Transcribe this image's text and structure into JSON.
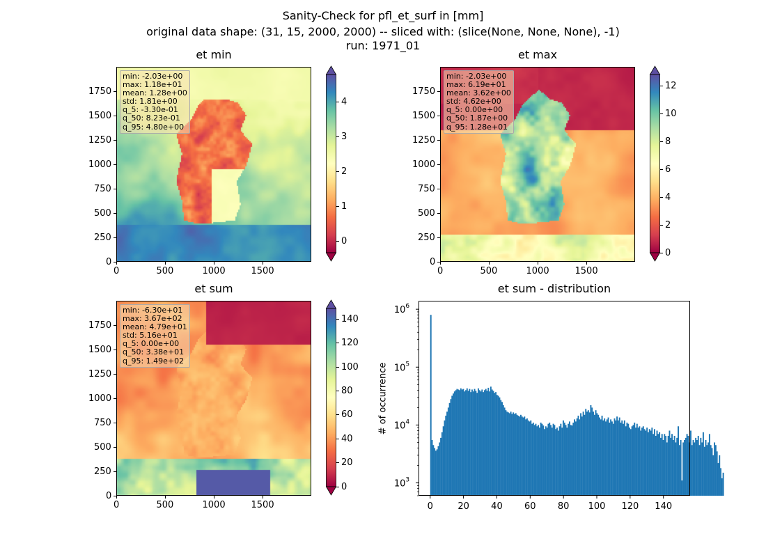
{
  "title": {
    "line1": "Sanity-Check for pfl_et_surf in [mm]",
    "line2": "original data shape: (31, 15, 2000, 2000) -- sliced with: (slice(None, None, None), -1)",
    "line3": "run: 1971_01"
  },
  "colors": {
    "cmap": [
      "#9e0142",
      "#d53e4f",
      "#f46d43",
      "#fdae61",
      "#fee08b",
      "#ffffbf",
      "#e6f598",
      "#abdda4",
      "#66c2a5",
      "#3288bd",
      "#5e4fa2"
    ],
    "hist_bar": "#1f77b4",
    "stat_box_bg": "#f5deb3"
  },
  "maps": [
    {
      "title": "et min",
      "x_ticks": [
        "0",
        "500",
        "1000",
        "1500"
      ],
      "y_ticks": [
        "0",
        "250",
        "500",
        "750",
        "1000",
        "1250",
        "1500",
        "1750"
      ],
      "colorbar_ticks": [
        "0",
        "1",
        "2",
        "3",
        "4"
      ],
      "colorbar_range": [
        -0.33,
        4.8
      ],
      "stats": [
        "min: -2.03e+00",
        "max: 1.18e+01",
        "mean: 1.28e+00",
        "std: 1.81e+00",
        "q_5: -3.30e-01",
        "q_50: 8.23e-01",
        "q_95: 4.80e+00"
      ]
    },
    {
      "title": "et max",
      "x_ticks": [
        "0",
        "500",
        "1000",
        "1500"
      ],
      "y_ticks": [
        "0",
        "250",
        "500",
        "750",
        "1000",
        "1250",
        "1500",
        "1750"
      ],
      "colorbar_ticks": [
        "0",
        "2",
        "4",
        "6",
        "8",
        "10",
        "12"
      ],
      "colorbar_range": [
        0,
        12.8
      ],
      "stats": [
        "min: -2.03e+00",
        "max: 6.19e+01",
        "mean: 3.62e+00",
        "std: 4.62e+00",
        "q_5: 0.00e+00",
        "q_50: 1.87e+00",
        "q_95: 1.28e+01"
      ]
    },
    {
      "title": "et sum",
      "x_ticks": [
        "0",
        "500",
        "1000",
        "1500"
      ],
      "y_ticks": [
        "0",
        "250",
        "500",
        "750",
        "1000",
        "1250",
        "1500",
        "1750"
      ],
      "colorbar_ticks": [
        "0",
        "20",
        "40",
        "60",
        "80",
        "100",
        "120",
        "140"
      ],
      "colorbar_range": [
        0,
        149
      ],
      "stats": [
        "min: -6.30e+01",
        "max: 3.67e+02",
        "mean: 4.79e+01",
        "std: 5.16e+01",
        "q_5: 0.00e+00",
        "q_50: 3.38e+01",
        "q_95: 1.49e+02"
      ]
    }
  ],
  "chart_data": {
    "type": "bar",
    "title": "et sum - distribution",
    "xlabel": "",
    "ylabel": "# of occurrence",
    "x_ticks": [
      "0",
      "20",
      "40",
      "60",
      "80",
      "100",
      "120",
      "140"
    ],
    "y_ticks": [
      "10^3",
      "10^4",
      "10^5",
      "10^6"
    ],
    "xlim": [
      -7,
      156
    ],
    "ylim_log": [
      600,
      1400000
    ],
    "yscale": "log",
    "bin_width": 0.75,
    "bins_start": 0,
    "series": [
      {
        "values": [
          800000,
          5500,
          4500,
          4000,
          3600,
          3800,
          4300,
          5000,
          6000,
          7500,
          9500,
          12000,
          14500,
          17000,
          20000,
          24000,
          28000,
          32000,
          35000,
          38000,
          40000,
          42000,
          41000,
          40000,
          43000,
          41000,
          42000,
          38000,
          40000,
          43000,
          39000,
          42000,
          37000,
          41000,
          38000,
          42000,
          39000,
          36000,
          43000,
          40000,
          38000,
          41000,
          37000,
          40000,
          42000,
          39000,
          44000,
          38000,
          46000,
          41000,
          39000,
          36000,
          37000,
          33000,
          32000,
          30000,
          27000,
          25000,
          22000,
          20000,
          18000,
          17000,
          16500,
          16000,
          17000,
          15500,
          16500,
          15500,
          16000,
          15000,
          14500,
          14000,
          15000,
          14000,
          13500,
          14000,
          12500,
          13000,
          12000,
          11500,
          12000,
          10500,
          11000,
          10000,
          10500,
          9500,
          10000,
          9000,
          11000,
          10500,
          9800,
          8500,
          9500,
          9000,
          10500,
          11000,
          10000,
          9000,
          10500,
          10000,
          8500,
          9000,
          8000,
          9500,
          10500,
          9000,
          12000,
          11000,
          10000,
          9000,
          10500,
          11500,
          10000,
          9800,
          11000,
          12500,
          11500,
          13000,
          14500,
          12500,
          16000,
          14000,
          17000,
          15000,
          19000,
          17000,
          18000,
          16500,
          22000,
          20000,
          17000,
          15000,
          18000,
          16000,
          15000,
          13500,
          12500,
          14500,
          12000,
          13000,
          11500,
          12500,
          13500,
          11000,
          12500,
          11500,
          10500,
          13000,
          12000,
          14000,
          12000,
          13500,
          11000,
          12000,
          10500,
          12000,
          9500,
          11000,
          10500,
          9000,
          8500,
          9500,
          10000,
          11000,
          9000,
          10500,
          9000,
          9500,
          8000,
          9000,
          9500,
          8500,
          8000,
          9000,
          7500,
          8500,
          8000,
          9000,
          7000,
          8500,
          6500,
          8000,
          7000,
          7500,
          6000,
          7000,
          5500,
          7000,
          6500,
          5000,
          6500,
          8000,
          6000,
          7000,
          5500,
          6500,
          5000,
          6000,
          9500,
          4500,
          5500,
          1100,
          5000,
          5500,
          6000,
          7000,
          6500,
          5000,
          8000,
          4500,
          5500,
          5000,
          6000,
          5500,
          6500,
          4500,
          6000,
          5000,
          7500,
          4200,
          5500,
          4500,
          5000,
          7000,
          4500,
          4000,
          3000,
          5000,
          4500,
          3500,
          2200,
          3000,
          1800,
          1200,
          1500
        ]
      }
    ]
  }
}
